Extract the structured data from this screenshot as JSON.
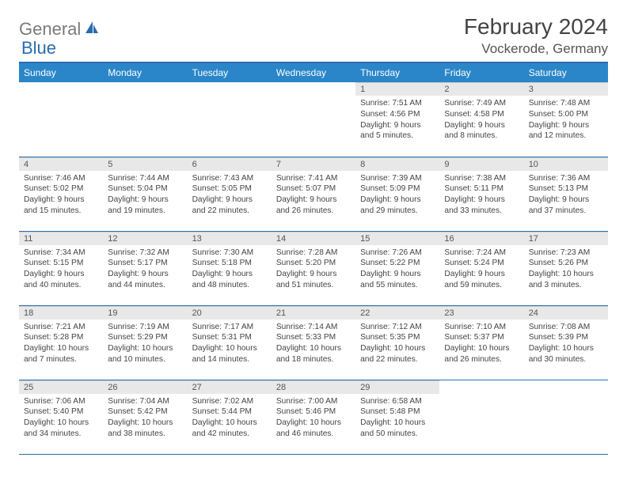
{
  "branding": {
    "logo_word1": "General",
    "logo_word2": "Blue",
    "logo_color_gray": "#7a7a7a",
    "logo_color_blue": "#2a6caf"
  },
  "header": {
    "title": "February 2024",
    "location": "Vockerode, Germany"
  },
  "style": {
    "header_bg": "#2a86c8",
    "header_fg": "#ffffff",
    "rule_color": "#2a6caf",
    "daynum_bg": "#e8e8e8",
    "body_bg": "#ffffff",
    "text_color": "#444444"
  },
  "day_headers": [
    "Sunday",
    "Monday",
    "Tuesday",
    "Wednesday",
    "Thursday",
    "Friday",
    "Saturday"
  ],
  "weeks": [
    [
      {
        "empty": true
      },
      {
        "empty": true
      },
      {
        "empty": true
      },
      {
        "empty": true
      },
      {
        "num": "1",
        "sunrise": "Sunrise: 7:51 AM",
        "sunset": "Sunset: 4:56 PM",
        "daylight1": "Daylight: 9 hours",
        "daylight2": "and 5 minutes."
      },
      {
        "num": "2",
        "sunrise": "Sunrise: 7:49 AM",
        "sunset": "Sunset: 4:58 PM",
        "daylight1": "Daylight: 9 hours",
        "daylight2": "and 8 minutes."
      },
      {
        "num": "3",
        "sunrise": "Sunrise: 7:48 AM",
        "sunset": "Sunset: 5:00 PM",
        "daylight1": "Daylight: 9 hours",
        "daylight2": "and 12 minutes."
      }
    ],
    [
      {
        "num": "4",
        "sunrise": "Sunrise: 7:46 AM",
        "sunset": "Sunset: 5:02 PM",
        "daylight1": "Daylight: 9 hours",
        "daylight2": "and 15 minutes."
      },
      {
        "num": "5",
        "sunrise": "Sunrise: 7:44 AM",
        "sunset": "Sunset: 5:04 PM",
        "daylight1": "Daylight: 9 hours",
        "daylight2": "and 19 minutes."
      },
      {
        "num": "6",
        "sunrise": "Sunrise: 7:43 AM",
        "sunset": "Sunset: 5:05 PM",
        "daylight1": "Daylight: 9 hours",
        "daylight2": "and 22 minutes."
      },
      {
        "num": "7",
        "sunrise": "Sunrise: 7:41 AM",
        "sunset": "Sunset: 5:07 PM",
        "daylight1": "Daylight: 9 hours",
        "daylight2": "and 26 minutes."
      },
      {
        "num": "8",
        "sunrise": "Sunrise: 7:39 AM",
        "sunset": "Sunset: 5:09 PM",
        "daylight1": "Daylight: 9 hours",
        "daylight2": "and 29 minutes."
      },
      {
        "num": "9",
        "sunrise": "Sunrise: 7:38 AM",
        "sunset": "Sunset: 5:11 PM",
        "daylight1": "Daylight: 9 hours",
        "daylight2": "and 33 minutes."
      },
      {
        "num": "10",
        "sunrise": "Sunrise: 7:36 AM",
        "sunset": "Sunset: 5:13 PM",
        "daylight1": "Daylight: 9 hours",
        "daylight2": "and 37 minutes."
      }
    ],
    [
      {
        "num": "11",
        "sunrise": "Sunrise: 7:34 AM",
        "sunset": "Sunset: 5:15 PM",
        "daylight1": "Daylight: 9 hours",
        "daylight2": "and 40 minutes."
      },
      {
        "num": "12",
        "sunrise": "Sunrise: 7:32 AM",
        "sunset": "Sunset: 5:17 PM",
        "daylight1": "Daylight: 9 hours",
        "daylight2": "and 44 minutes."
      },
      {
        "num": "13",
        "sunrise": "Sunrise: 7:30 AM",
        "sunset": "Sunset: 5:18 PM",
        "daylight1": "Daylight: 9 hours",
        "daylight2": "and 48 minutes."
      },
      {
        "num": "14",
        "sunrise": "Sunrise: 7:28 AM",
        "sunset": "Sunset: 5:20 PM",
        "daylight1": "Daylight: 9 hours",
        "daylight2": "and 51 minutes."
      },
      {
        "num": "15",
        "sunrise": "Sunrise: 7:26 AM",
        "sunset": "Sunset: 5:22 PM",
        "daylight1": "Daylight: 9 hours",
        "daylight2": "and 55 minutes."
      },
      {
        "num": "16",
        "sunrise": "Sunrise: 7:24 AM",
        "sunset": "Sunset: 5:24 PM",
        "daylight1": "Daylight: 9 hours",
        "daylight2": "and 59 minutes."
      },
      {
        "num": "17",
        "sunrise": "Sunrise: 7:23 AM",
        "sunset": "Sunset: 5:26 PM",
        "daylight1": "Daylight: 10 hours",
        "daylight2": "and 3 minutes."
      }
    ],
    [
      {
        "num": "18",
        "sunrise": "Sunrise: 7:21 AM",
        "sunset": "Sunset: 5:28 PM",
        "daylight1": "Daylight: 10 hours",
        "daylight2": "and 7 minutes."
      },
      {
        "num": "19",
        "sunrise": "Sunrise: 7:19 AM",
        "sunset": "Sunset: 5:29 PM",
        "daylight1": "Daylight: 10 hours",
        "daylight2": "and 10 minutes."
      },
      {
        "num": "20",
        "sunrise": "Sunrise: 7:17 AM",
        "sunset": "Sunset: 5:31 PM",
        "daylight1": "Daylight: 10 hours",
        "daylight2": "and 14 minutes."
      },
      {
        "num": "21",
        "sunrise": "Sunrise: 7:14 AM",
        "sunset": "Sunset: 5:33 PM",
        "daylight1": "Daylight: 10 hours",
        "daylight2": "and 18 minutes."
      },
      {
        "num": "22",
        "sunrise": "Sunrise: 7:12 AM",
        "sunset": "Sunset: 5:35 PM",
        "daylight1": "Daylight: 10 hours",
        "daylight2": "and 22 minutes."
      },
      {
        "num": "23",
        "sunrise": "Sunrise: 7:10 AM",
        "sunset": "Sunset: 5:37 PM",
        "daylight1": "Daylight: 10 hours",
        "daylight2": "and 26 minutes."
      },
      {
        "num": "24",
        "sunrise": "Sunrise: 7:08 AM",
        "sunset": "Sunset: 5:39 PM",
        "daylight1": "Daylight: 10 hours",
        "daylight2": "and 30 minutes."
      }
    ],
    [
      {
        "num": "25",
        "sunrise": "Sunrise: 7:06 AM",
        "sunset": "Sunset: 5:40 PM",
        "daylight1": "Daylight: 10 hours",
        "daylight2": "and 34 minutes."
      },
      {
        "num": "26",
        "sunrise": "Sunrise: 7:04 AM",
        "sunset": "Sunset: 5:42 PM",
        "daylight1": "Daylight: 10 hours",
        "daylight2": "and 38 minutes."
      },
      {
        "num": "27",
        "sunrise": "Sunrise: 7:02 AM",
        "sunset": "Sunset: 5:44 PM",
        "daylight1": "Daylight: 10 hours",
        "daylight2": "and 42 minutes."
      },
      {
        "num": "28",
        "sunrise": "Sunrise: 7:00 AM",
        "sunset": "Sunset: 5:46 PM",
        "daylight1": "Daylight: 10 hours",
        "daylight2": "and 46 minutes."
      },
      {
        "num": "29",
        "sunrise": "Sunrise: 6:58 AM",
        "sunset": "Sunset: 5:48 PM",
        "daylight1": "Daylight: 10 hours",
        "daylight2": "and 50 minutes."
      },
      {
        "empty": true
      },
      {
        "empty": true
      }
    ]
  ]
}
